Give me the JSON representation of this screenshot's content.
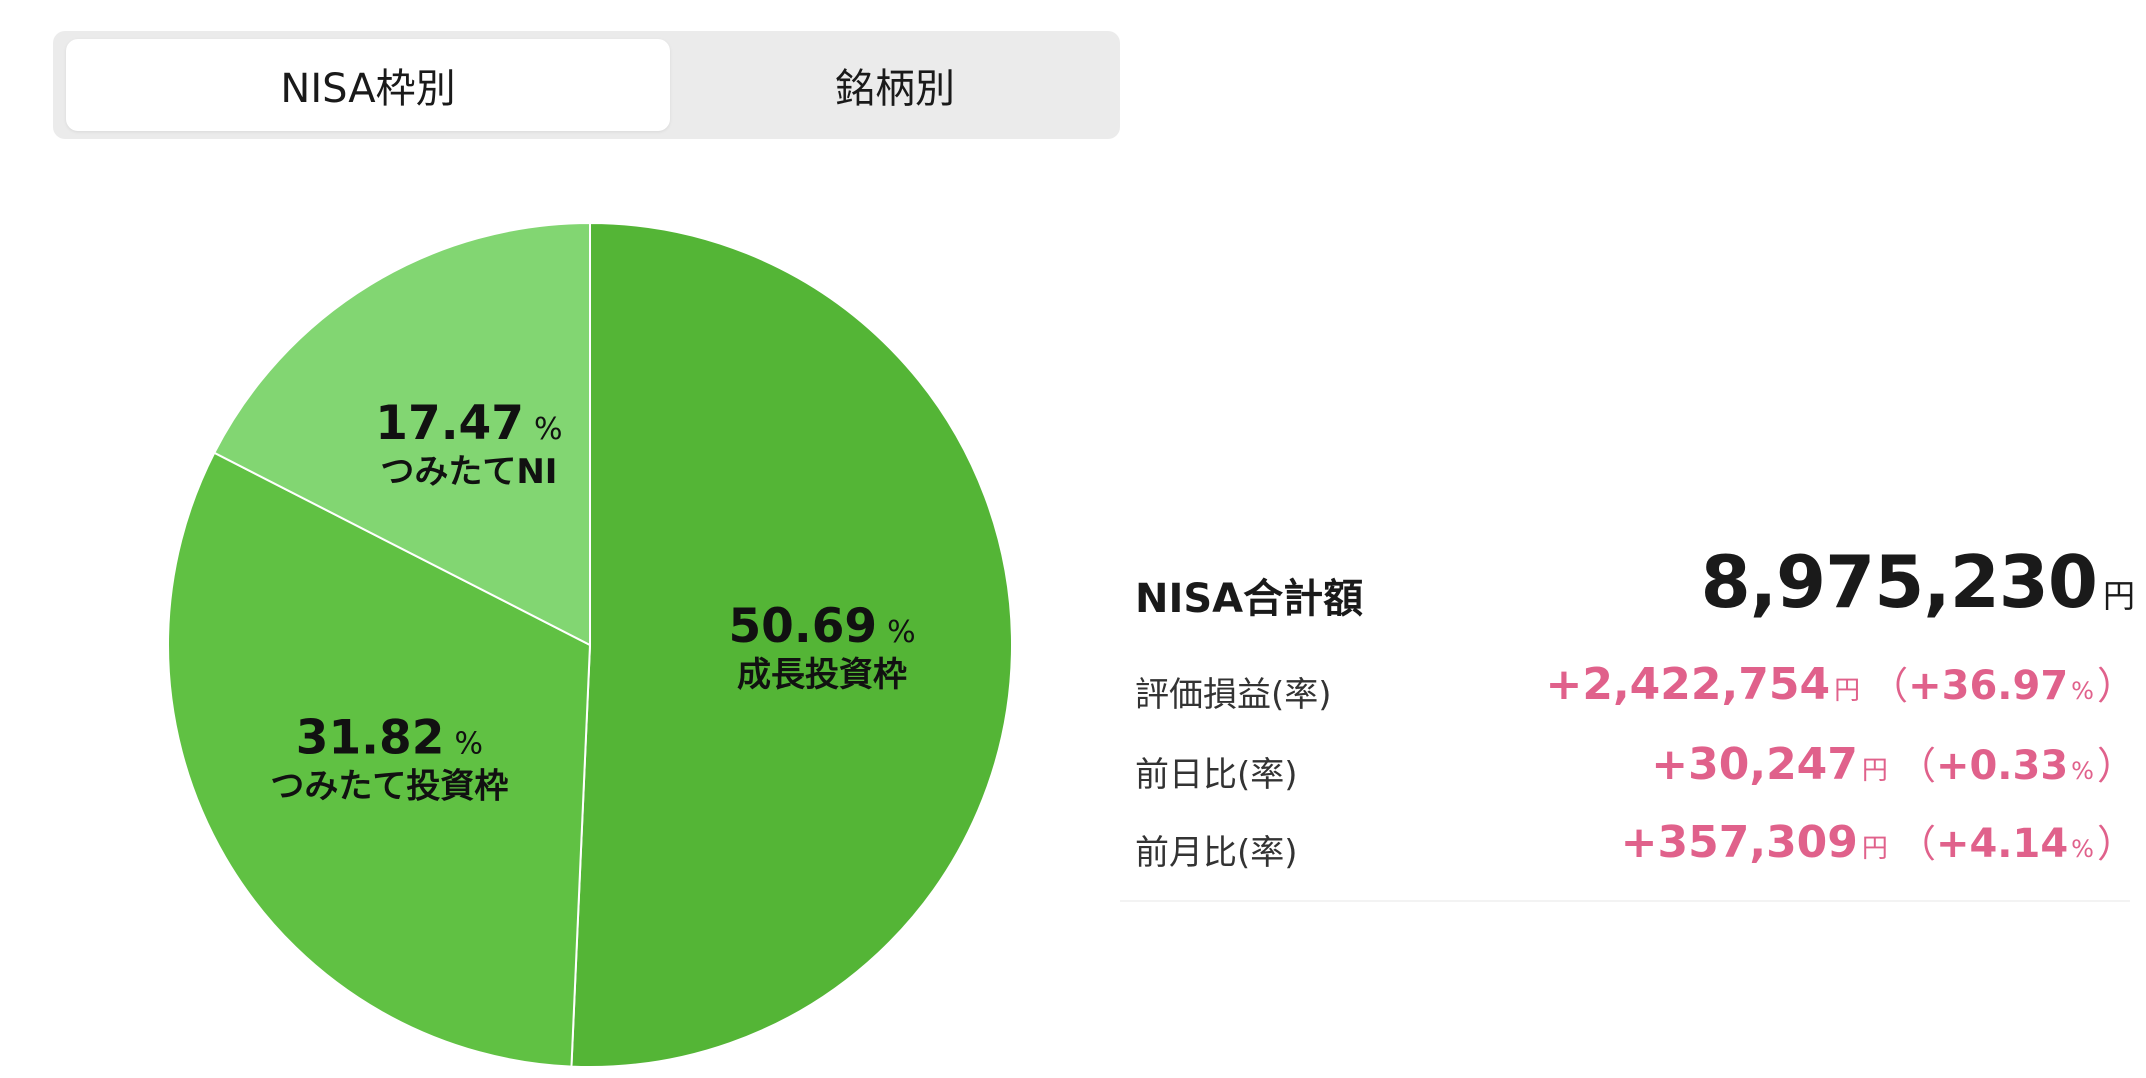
{
  "tabs": [
    {
      "label": "NISA枠別",
      "active": true
    },
    {
      "label": "銘柄別",
      "active": false
    }
  ],
  "chart_data": {
    "type": "pie",
    "slices": [
      {
        "name": "成長投資枠",
        "value": 50.69,
        "color": "#54b536"
      },
      {
        "name": "つみたて投資枠",
        "value": 31.82,
        "color": "#60c143"
      },
      {
        "name": "つみたてNI",
        "value": 17.47,
        "color": "#82d672"
      }
    ],
    "unit": "%"
  },
  "summary": {
    "total_label": "NISA合計額",
    "total_value": "8,975,230",
    "total_unit": "円",
    "rows": [
      {
        "label": "評価損益(率)",
        "amount": "+2,422,754",
        "yen": "円",
        "open": "（",
        "rate": "+36.97",
        "pct": "%",
        "close": "）"
      },
      {
        "label": "前日比(率)",
        "amount": "+30,247",
        "yen": "円",
        "open": "（",
        "rate": "+0.33",
        "pct": "%",
        "close": "）"
      },
      {
        "label": "前月比(率)",
        "amount": "+357,309",
        "yen": "円",
        "open": "（",
        "rate": "+4.14",
        "pct": "%",
        "close": "）"
      }
    ],
    "accent_color": "#e0618b"
  }
}
